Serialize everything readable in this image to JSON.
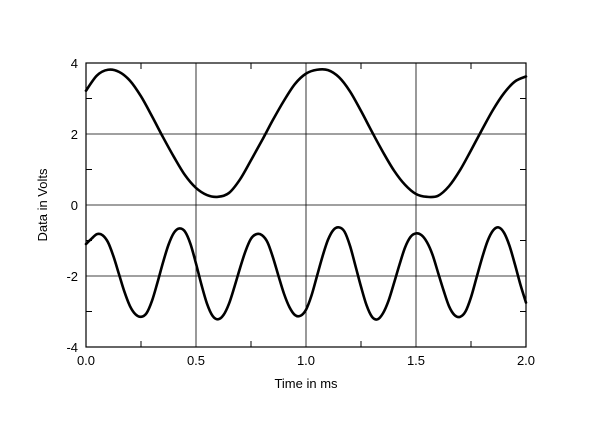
{
  "chart_data": {
    "type": "line",
    "title": "",
    "xlabel": "Time in ms",
    "ylabel": "Data in Volts",
    "xlim": [
      0.0,
      2.0
    ],
    "ylim": [
      -4,
      4
    ],
    "grid": true,
    "legend": "none",
    "x_ticks": [
      {
        "value": 0.0,
        "label": "0.0"
      },
      {
        "value": 0.5,
        "label": "0.5"
      },
      {
        "value": 1.0,
        "label": "1.0"
      },
      {
        "value": 1.5,
        "label": "1.5"
      },
      {
        "value": 2.0,
        "label": "2.0"
      }
    ],
    "y_ticks": [
      {
        "value": 4,
        "label": "4"
      },
      {
        "value": 2,
        "label": "2"
      },
      {
        "value": 0,
        "label": "0"
      },
      {
        "value": -2,
        "label": "-2"
      },
      {
        "value": -4,
        "label": "-4"
      }
    ],
    "series": [
      {
        "color": "#000000",
        "x": [
          0.0,
          0.05,
          0.1,
          0.15,
          0.2,
          0.25,
          0.3,
          0.35,
          0.4,
          0.45,
          0.5,
          0.55,
          0.6,
          0.65,
          0.7,
          0.75,
          0.8,
          0.85,
          0.9,
          0.95,
          1.0,
          1.05,
          1.1,
          1.15,
          1.2,
          1.25,
          1.3,
          1.35,
          1.4,
          1.45,
          1.5,
          1.55,
          1.6,
          1.65,
          1.7,
          1.75,
          1.8,
          1.85,
          1.9,
          1.95,
          2.0
        ],
        "y": [
          3.22,
          3.65,
          3.81,
          3.75,
          3.5,
          3.06,
          2.5,
          1.91,
          1.35,
          0.84,
          0.48,
          0.28,
          0.23,
          0.34,
          0.72,
          1.26,
          1.82,
          2.4,
          2.94,
          3.41,
          3.7,
          3.81,
          3.8,
          3.6,
          3.2,
          2.65,
          2.06,
          1.49,
          0.97,
          0.57,
          0.31,
          0.23,
          0.26,
          0.53,
          0.98,
          1.54,
          2.12,
          2.68,
          3.15,
          3.48,
          3.62
        ]
      },
      {
        "color": "#000000",
        "x": [
          0.0,
          0.025,
          0.05,
          0.075,
          0.1,
          0.125,
          0.15,
          0.175,
          0.2,
          0.225,
          0.25,
          0.275,
          0.3,
          0.325,
          0.35,
          0.375,
          0.4,
          0.425,
          0.45,
          0.475,
          0.5,
          0.525,
          0.55,
          0.575,
          0.6,
          0.625,
          0.65,
          0.675,
          0.7,
          0.725,
          0.75,
          0.775,
          0.8,
          0.825,
          0.85,
          0.875,
          0.9,
          0.925,
          0.95,
          0.975,
          1.0,
          1.025,
          1.05,
          1.075,
          1.1,
          1.125,
          1.15,
          1.175,
          1.2,
          1.225,
          1.25,
          1.275,
          1.3,
          1.325,
          1.35,
          1.375,
          1.4,
          1.425,
          1.45,
          1.475,
          1.5,
          1.525,
          1.55,
          1.575,
          1.6,
          1.625,
          1.65,
          1.675,
          1.7,
          1.725,
          1.75,
          1.775,
          1.8,
          1.825,
          1.85,
          1.875,
          1.9,
          1.925,
          1.95,
          1.975,
          2.0
        ],
        "y": [
          -1.1,
          -0.95,
          -0.82,
          -0.85,
          -1.05,
          -1.45,
          -1.95,
          -2.45,
          -2.85,
          -3.08,
          -3.15,
          -3.05,
          -2.7,
          -2.18,
          -1.62,
          -1.12,
          -0.78,
          -0.66,
          -0.75,
          -1.1,
          -1.65,
          -2.25,
          -2.78,
          -3.12,
          -3.22,
          -3.1,
          -2.78,
          -2.3,
          -1.78,
          -1.3,
          -0.95,
          -0.82,
          -0.85,
          -1.05,
          -1.48,
          -2.0,
          -2.5,
          -2.88,
          -3.1,
          -3.12,
          -2.95,
          -2.55,
          -2.0,
          -1.45,
          -0.98,
          -0.7,
          -0.63,
          -0.75,
          -1.15,
          -1.72,
          -2.3,
          -2.82,
          -3.15,
          -3.22,
          -3.05,
          -2.7,
          -2.2,
          -1.68,
          -1.2,
          -0.9,
          -0.8,
          -0.85,
          -1.05,
          -1.4,
          -1.9,
          -2.4,
          -2.85,
          -3.1,
          -3.15,
          -3.0,
          -2.6,
          -2.05,
          -1.5,
          -1.02,
          -0.72,
          -0.63,
          -0.78,
          -1.15,
          -1.68,
          -2.25,
          -2.75
        ]
      }
    ]
  }
}
